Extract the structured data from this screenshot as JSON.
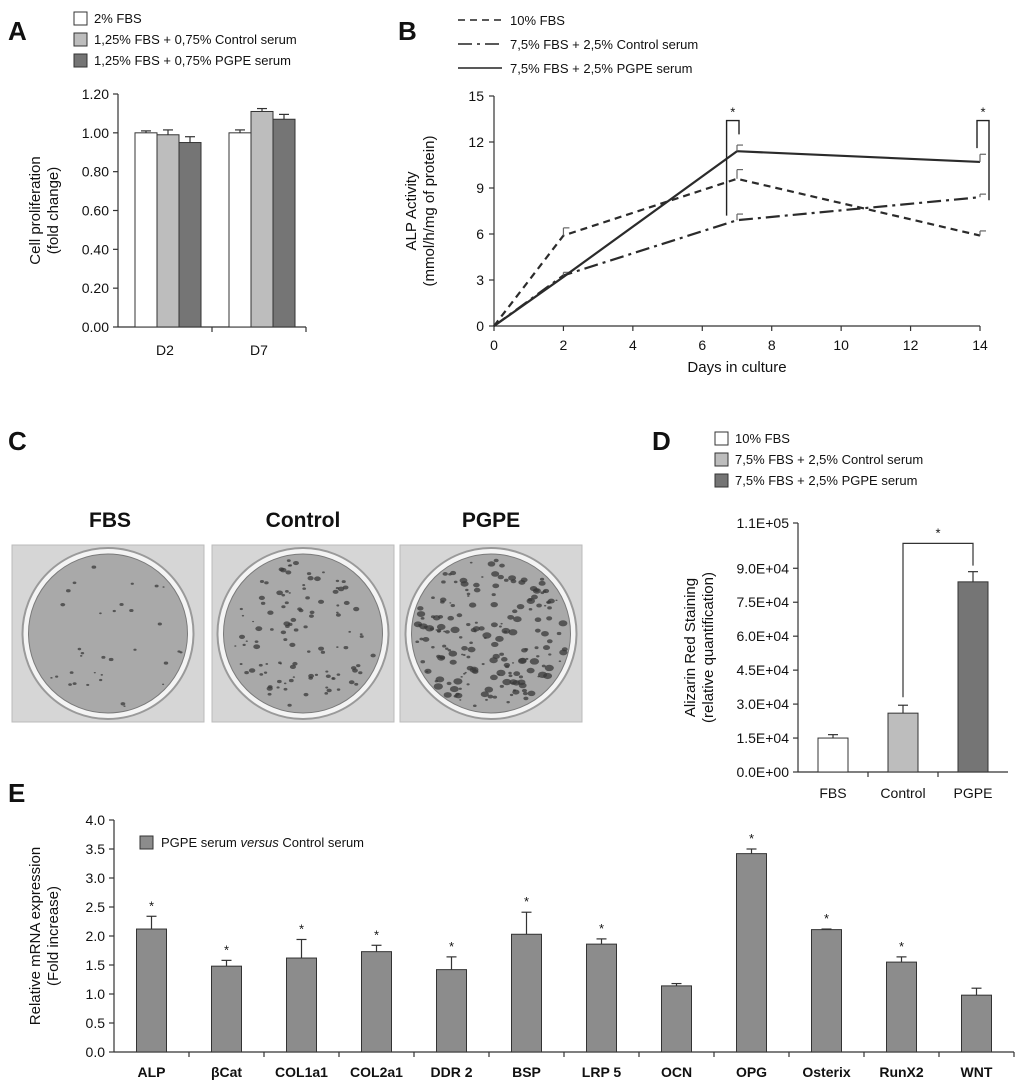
{
  "panels": {
    "A": "A",
    "B": "B",
    "C": "C",
    "D": "D",
    "E": "E"
  },
  "chart_data": [
    {
      "id": "A",
      "type": "bar",
      "categories": [
        "D2",
        "D7"
      ],
      "series": [
        {
          "name": "2% FBS",
          "values": [
            1.0,
            1.0
          ],
          "errors": [
            0.01,
            0.015
          ],
          "color": "#ffffff"
        },
        {
          "name": "1,25% FBS + 0,75% Control serum",
          "values": [
            0.99,
            1.11
          ],
          "errors": [
            0.025,
            0.015
          ],
          "color": "#bdbdbd"
        },
        {
          "name": "1,25% FBS + 0,75% PGPE serum",
          "values": [
            0.95,
            1.07
          ],
          "errors": [
            0.03,
            0.025
          ],
          "color": "#757575"
        }
      ],
      "ylabel": "Cell proliferation\n(fold change)",
      "ylim": [
        0,
        1.2
      ],
      "yticks": [
        "0.00",
        "0.20",
        "0.40",
        "0.60",
        "0.80",
        "1.00",
        "1.20"
      ],
      "grid": false,
      "legend": "top-left"
    },
    {
      "id": "B",
      "type": "line",
      "x": [
        0,
        2,
        7,
        14
      ],
      "series": [
        {
          "name": "10% FBS",
          "values": [
            0,
            5.9,
            9.6,
            5.9
          ],
          "errors": [
            0,
            0.5,
            0.6,
            0.3
          ],
          "style": "dashed"
        },
        {
          "name": "7,5% FBS + 2,5% Control serum",
          "values": [
            0,
            3.3,
            6.9,
            8.4
          ],
          "errors": [
            0,
            0.2,
            0.4,
            0.2
          ],
          "style": "dashdot"
        },
        {
          "name": "7,5% FBS + 2,5% PGPE serum",
          "values": [
            0,
            3.2,
            11.4,
            10.7
          ],
          "errors": [
            0,
            0,
            0.4,
            0.5
          ],
          "style": "solid"
        }
      ],
      "xlabel": "Days in culture",
      "ylabel": "ALP Activity\n(mmol/h/mg of protein)",
      "xlim": [
        0,
        14
      ],
      "ylim": [
        0,
        15
      ],
      "xticks": [
        "0",
        "2",
        "4",
        "6",
        "8",
        "10",
        "12",
        "14"
      ],
      "yticks": [
        "0",
        "3",
        "6",
        "9",
        "12",
        "15"
      ],
      "annotations": [
        "*",
        "*"
      ],
      "grid": false,
      "legend": "top-left"
    },
    {
      "id": "D",
      "type": "bar",
      "categories": [
        "FBS",
        "Control",
        "PGPE"
      ],
      "values": [
        15000,
        26000,
        84000
      ],
      "errors": [
        1500,
        3500,
        4500
      ],
      "colors": [
        "#ffffff",
        "#bdbdbd",
        "#757575"
      ],
      "legend_entries": [
        "10% FBS",
        "7,5% FBS + 2,5% Control serum",
        "7,5% FBS + 2,5% PGPE serum"
      ],
      "ylabel": "Alizarin Red Staining\n(relative quantification)",
      "ylim": [
        0,
        110000
      ],
      "yticks": [
        "0.0E+00",
        "1.5E+04",
        "3.0E+04",
        "4.5E+04",
        "6.0E+04",
        "7.5E+04",
        "9.0E+04",
        "1.1E+05"
      ],
      "annotations": [
        "*"
      ],
      "grid": false,
      "legend": "top-left"
    },
    {
      "id": "E",
      "type": "bar",
      "categories": [
        "ALP",
        "βCat",
        "COL1a1",
        "COL2a1",
        "DDR 2",
        "BSP",
        "LRP 5",
        "OCN",
        "OPG",
        "Osterix",
        "RunX2",
        "WNT"
      ],
      "values": [
        2.12,
        1.48,
        1.62,
        1.73,
        1.42,
        2.03,
        1.86,
        1.14,
        3.42,
        2.11,
        1.55,
        0.98
      ],
      "errors": [
        0.22,
        0.1,
        0.32,
        0.11,
        0.22,
        0.38,
        0.09,
        0.04,
        0.08,
        0.01,
        0.09,
        0.12
      ],
      "significant": [
        true,
        true,
        true,
        true,
        true,
        true,
        true,
        false,
        true,
        true,
        true,
        false
      ],
      "legend_html": [
        "PGPE serum ",
        "versus",
        " Control serum"
      ],
      "ylabel": "Relative mRNA expression\n(Fold increase)",
      "ylim": [
        0,
        4
      ],
      "yticks": [
        "0.0",
        "0.5",
        "1.0",
        "1.5",
        "2.0",
        "2.5",
        "3.0",
        "3.5",
        "4.0"
      ],
      "bar_color": "#8c8c8c",
      "grid": false,
      "legend": "top-left"
    }
  ],
  "photos": {
    "labels": [
      "FBS",
      "Control",
      "PGPE"
    ],
    "densities": [
      0.15,
      0.5,
      0.9
    ]
  }
}
